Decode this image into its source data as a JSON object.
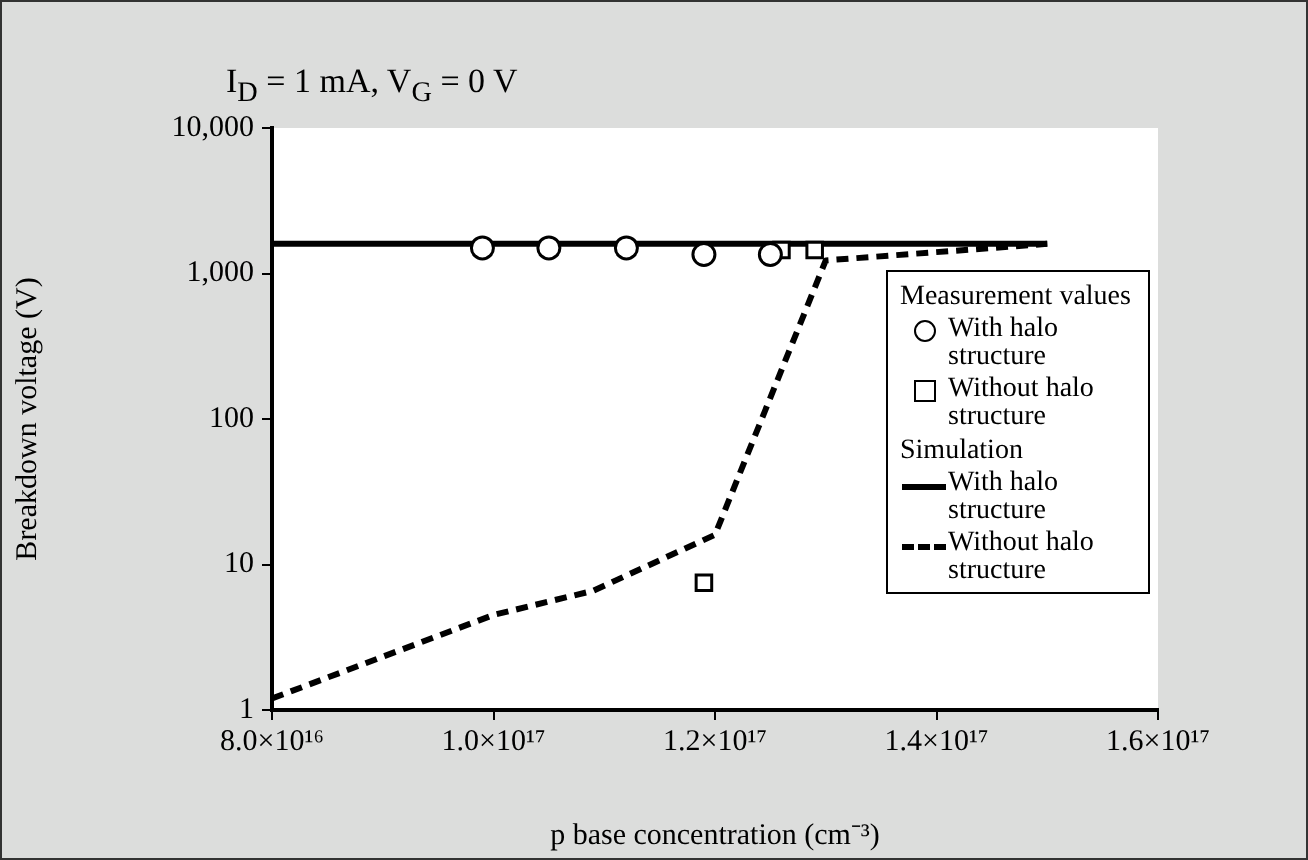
{
  "chart_data": {
    "type": "scatter",
    "title": "I$_{D}$ = 1 mA, V$_{G}$ = 0 V",
    "xlabel": "p base concentration (cm⁻³)",
    "ylabel": "Breakdown voltage (V)",
    "xlim": [
      8e+16,
      1.6e+17
    ],
    "xticks": [
      {
        "value": 8e+16,
        "label": "8.0×10¹⁶"
      },
      {
        "value": 1e+17,
        "label": "1.0×10¹⁷"
      },
      {
        "value": 1.2e+17,
        "label": "1.2×10¹⁷"
      },
      {
        "value": 1.4e+17,
        "label": "1.4×10¹⁷"
      },
      {
        "value": 1.6e+17,
        "label": "1.6×10¹⁷"
      }
    ],
    "ylim": [
      1,
      10000
    ],
    "yticks": [
      1,
      10,
      100,
      {
        "value": 1000,
        "label": "1,000"
      },
      {
        "value": 10000,
        "label": "10,000"
      }
    ],
    "log": "y",
    "grid": false,
    "legend": "right",
    "annotations": [
      "Measurement values",
      "Simulation"
    ],
    "series": [
      {
        "name": "With halo structure",
        "type": "scatter",
        "marker": "circle",
        "color": "#000000",
        "x": [
          9.9e+16,
          1.05e+17,
          1.12e+17,
          1.19e+17,
          1.25e+17
        ],
        "values": [
          1500,
          1500,
          1500,
          1350,
          1350
        ]
      },
      {
        "name": "Without halo structure",
        "type": "scatter",
        "marker": "square",
        "color": "#000000",
        "x": [
          1.19e+17,
          1.26e+17,
          1.29e+17
        ],
        "values": [
          7.5,
          1450,
          1450
        ]
      },
      {
        "name": "With halo structure",
        "type": "line",
        "line_style": "solid",
        "marker": "none",
        "color": "#000000",
        "x": [
          8e+16,
          1.5e+17
        ],
        "values": [
          1600,
          1600
        ]
      },
      {
        "name": "Without halo structure",
        "type": "line",
        "line_style": "dashed",
        "marker": "none",
        "color": "#000000",
        "x": [
          8e+16,
          1e+17,
          1.09e+17,
          1.2e+17,
          1.3e+17,
          1.5e+17
        ],
        "values": [
          1.2,
          4.5,
          6.6,
          16,
          1230,
          1600
        ]
      }
    ]
  }
}
